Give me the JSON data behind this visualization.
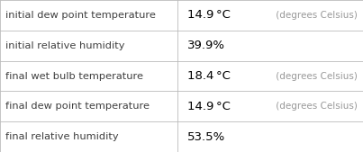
{
  "rows": [
    {
      "label": "initial dew point temperature",
      "value": "14.9 °C",
      "unit": " (degrees Celsius)"
    },
    {
      "label": "initial relative humidity",
      "value": "39.9%",
      "unit": ""
    },
    {
      "label": "final wet bulb temperature",
      "value": "18.4 °C",
      "unit": " (degrees Celsius)"
    },
    {
      "label": "final dew point temperature",
      "value": "14.9 °C",
      "unit": " (degrees Celsius)"
    },
    {
      "label": "final relative humidity",
      "value": "53.5%",
      "unit": ""
    }
  ],
  "col_split": 0.49,
  "background_color": "#ffffff",
  "border_color": "#bbbbbb",
  "text_color_label": "#404040",
  "text_color_value": "#000000",
  "text_color_unit": "#999999",
  "label_fontsize": 8.2,
  "value_fontsize": 9.5,
  "unit_fontsize": 7.5
}
